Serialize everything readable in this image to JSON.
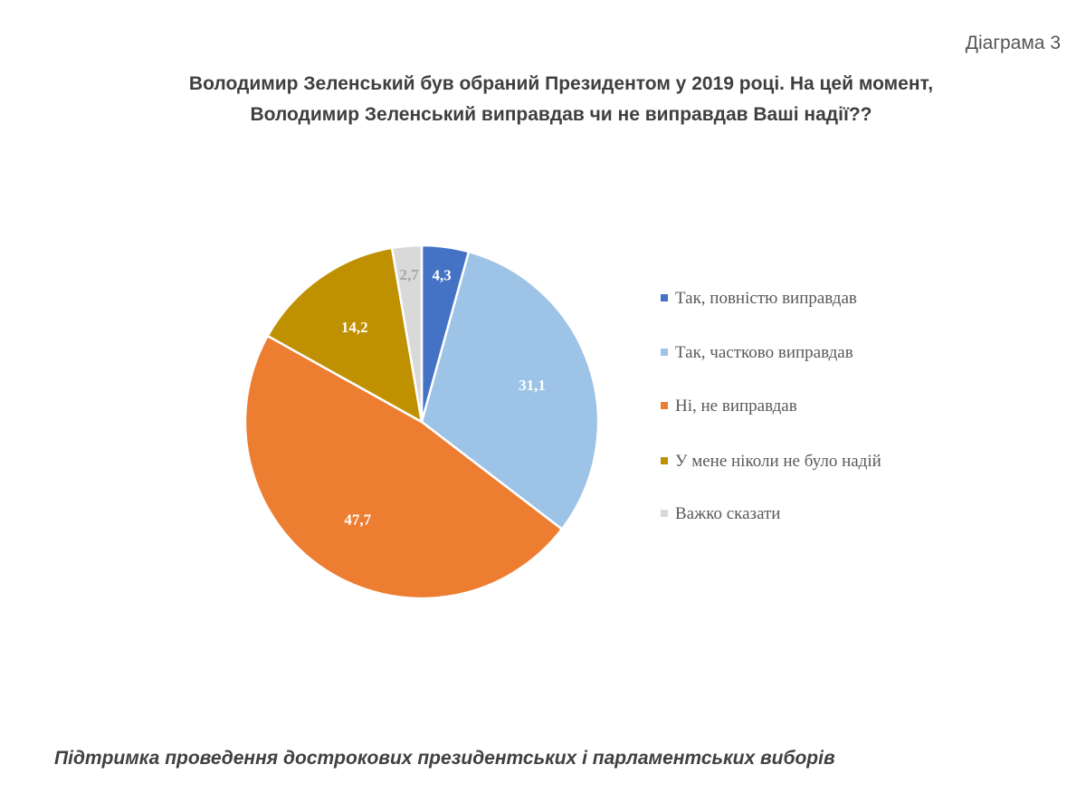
{
  "diagram_label": "Діаграма 3",
  "title_lines": [
    "Володимир Зеленський був обраний Президентом у 2019 році. На цей момент,",
    "Володимир Зеленський виправдав чи не виправдав Ваші надії??"
  ],
  "footer": "Підтримка проведення дострокових президентських і парламентських виборів",
  "chart_data": {
    "type": "pie",
    "categories": [
      "Так, повністю виправдав",
      "Так, частково виправдав",
      "Ні, не виправдав",
      "У мене ніколи не було надій",
      "Важко сказати"
    ],
    "values": [
      4.3,
      31.1,
      47.7,
      14.2,
      2.7
    ],
    "value_labels": [
      "4,3",
      "31,1",
      "47,7",
      "14,2",
      "2,7"
    ],
    "colors": [
      "#4472c4",
      "#9dc3e6",
      "#ed7d31",
      "#bf9000",
      "#d9d9d9"
    ],
    "label_colors": [
      "#ffffff",
      "#ffffff",
      "#ffffff",
      "#ffffff",
      "#a6a6a6"
    ],
    "legend_position": "right"
  }
}
